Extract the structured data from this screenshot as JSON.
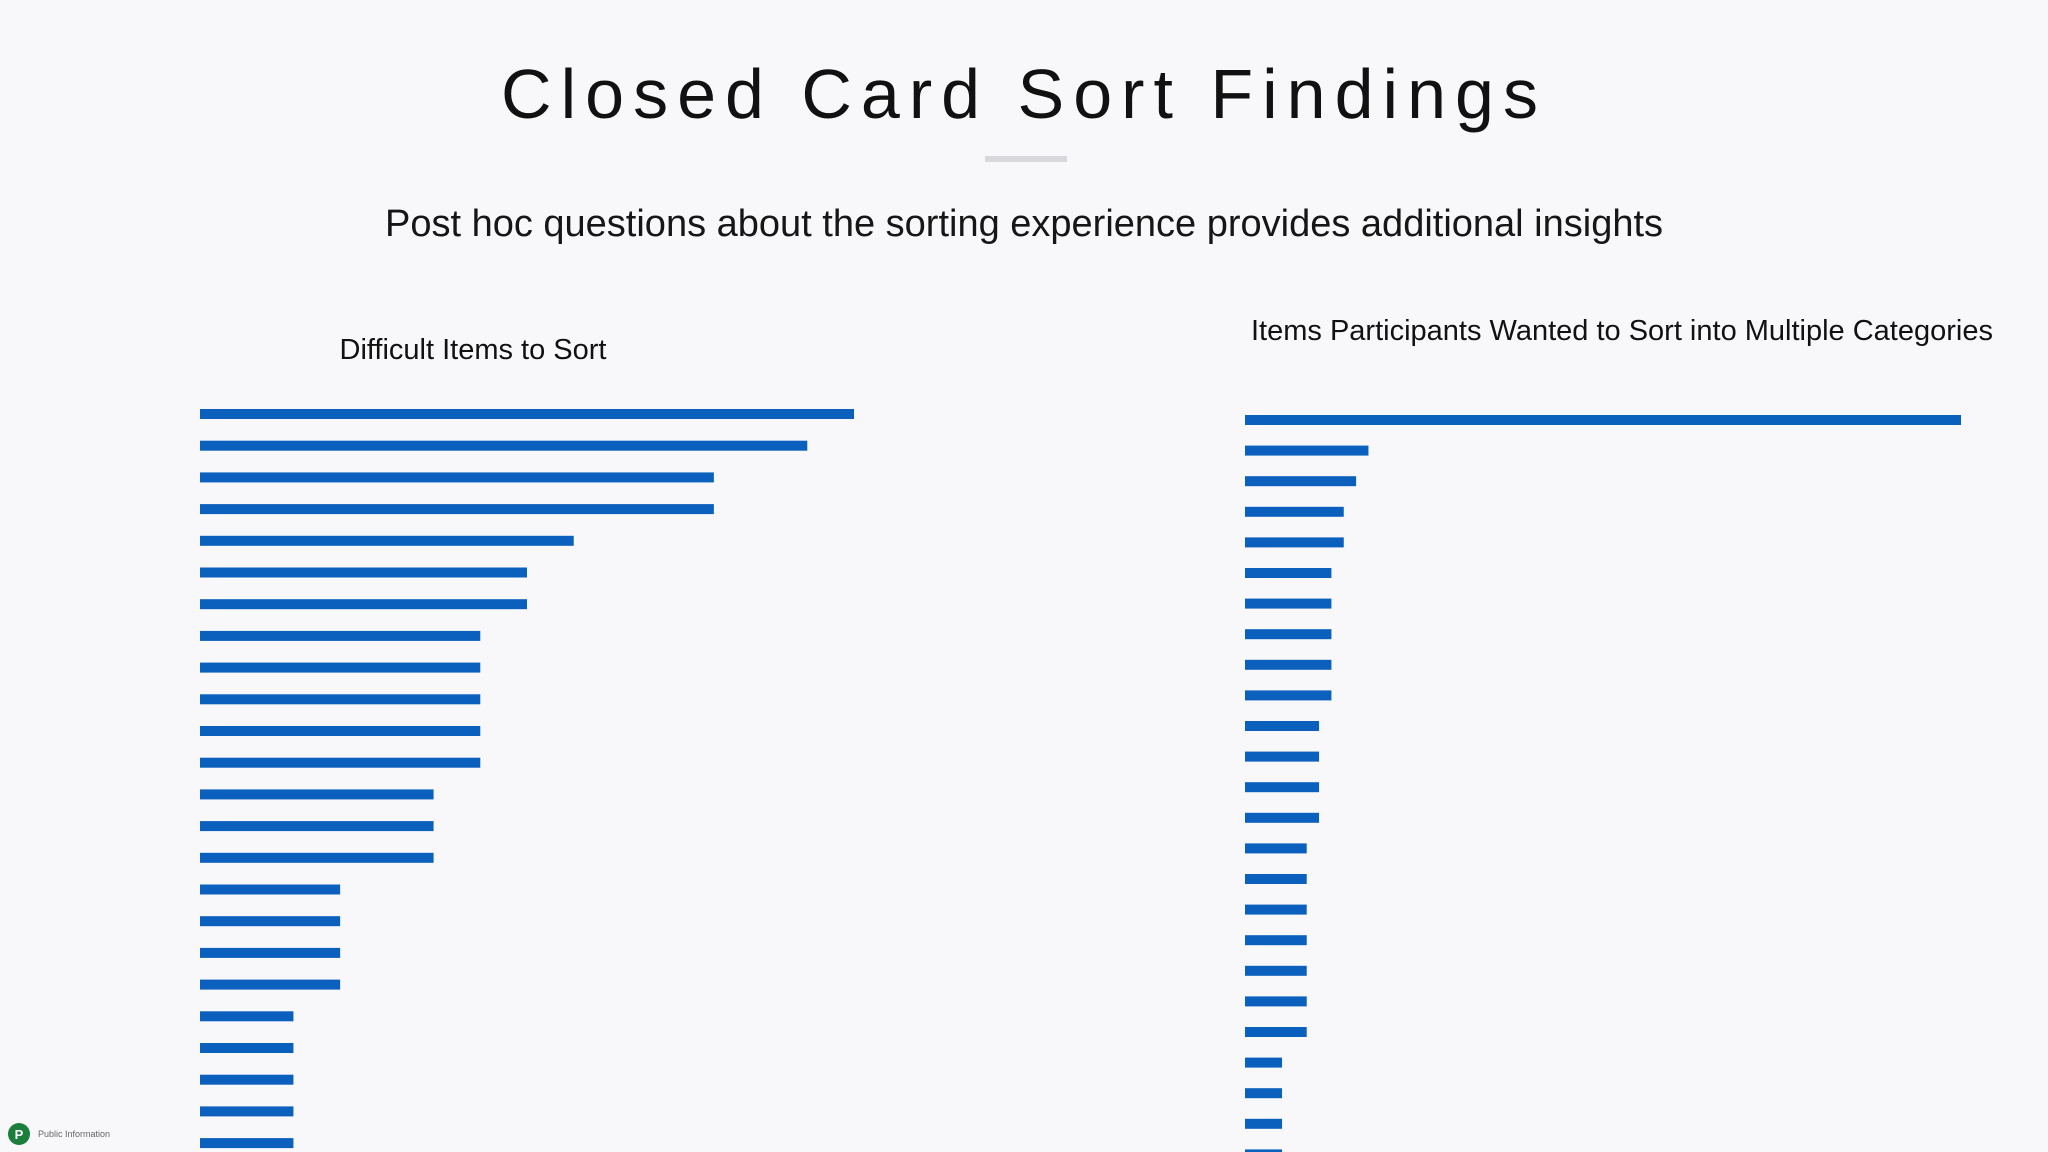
{
  "header": {
    "title": "Closed Card Sort Findings",
    "subtitle": "Post hoc questions about the sorting experience provides additional insights"
  },
  "footer": {
    "logo_letter": "P",
    "label": "Public Information"
  },
  "colors": {
    "bar": "#0b5fbd",
    "background": "#f8f8fa"
  },
  "chart_data": [
    {
      "type": "bar",
      "orientation": "horizontal",
      "title": "Difficult Items to Sort",
      "xlim": [
        0,
        14
      ],
      "values": [
        14,
        13,
        11,
        11,
        8,
        7,
        7,
        6,
        6,
        6,
        6,
        6,
        5,
        5,
        5,
        3,
        3,
        3,
        3,
        2,
        2,
        2,
        2,
        2
      ]
    },
    {
      "type": "bar",
      "orientation": "horizontal",
      "title": "Items Participants Wanted to Sort into Multiple Categories",
      "xlim": [
        0,
        58
      ],
      "values": [
        58,
        10,
        9,
        8,
        8,
        7,
        7,
        7,
        7,
        7,
        6,
        6,
        6,
        6,
        5,
        5,
        5,
        5,
        5,
        5,
        5,
        3,
        3,
        3,
        3
      ]
    }
  ]
}
